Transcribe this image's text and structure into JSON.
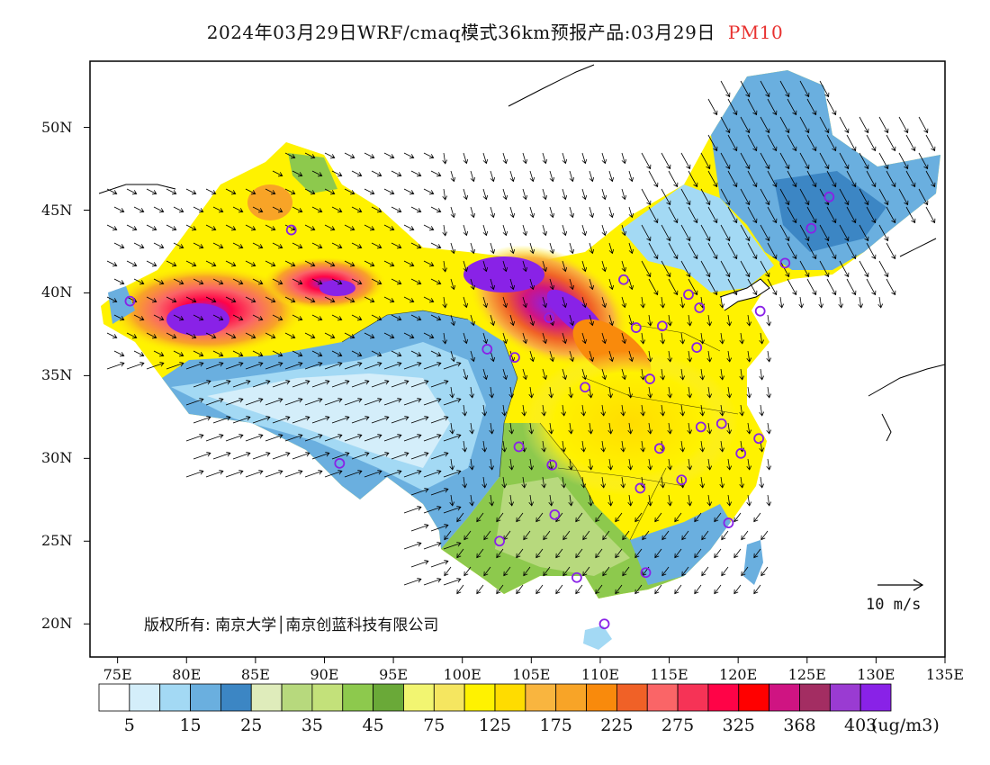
{
  "title": {
    "main": "2024年03月29日WRF/cmaq模式36km预报产品:03月29日",
    "pollutant": "PM10"
  },
  "map": {
    "lon_ticks": [
      "75E",
      "80E",
      "85E",
      "90E",
      "95E",
      "100E",
      "105E",
      "110E",
      "115E",
      "120E",
      "125E",
      "130E",
      "135E"
    ],
    "lat_ticks": [
      "50N",
      "45N",
      "40N",
      "35N",
      "30N",
      "25N",
      "20N"
    ],
    "lon_range": [
      73,
      135
    ],
    "lat_range": [
      18,
      54
    ]
  },
  "copyright": "版权所有: 南京大学│南京创蓝科技有限公司",
  "wind_scale": {
    "label": "10  m/s"
  },
  "colorbar": {
    "units": "(ug/m3)",
    "labels": [
      "5",
      "15",
      "25",
      "35",
      "45",
      "75",
      "125",
      "175",
      "225",
      "275",
      "325",
      "368",
      "403"
    ],
    "colors": [
      "#ffffff",
      "#d4eefa",
      "#a3d9f4",
      "#6aafdf",
      "#3c86c4",
      "#dfecbb",
      "#b7d97d",
      "#c3e17a",
      "#8dc94d",
      "#6aa938",
      "#f2f571",
      "#f5e660",
      "#fff200",
      "#ffdc00",
      "#f9b53f",
      "#f8a427",
      "#f98a0c",
      "#f06127",
      "#fa6567",
      "#f63356",
      "#ff0347",
      "#ff0000",
      "#cf1482",
      "#a32d62",
      "#9a3bd2",
      "#8922e7"
    ]
  },
  "cities": [
    {
      "lon": 87.6,
      "lat": 43.8
    },
    {
      "lon": 91.1,
      "lat": 29.7
    },
    {
      "lon": 101.8,
      "lat": 36.6
    },
    {
      "lon": 103.8,
      "lat": 36.1
    },
    {
      "lon": 106.3,
      "lat": 38.5
    },
    {
      "lon": 111.7,
      "lat": 40.8
    },
    {
      "lon": 112.6,
      "lat": 37.9
    },
    {
      "lon": 114.5,
      "lat": 38.0
    },
    {
      "lon": 116.4,
      "lat": 39.9
    },
    {
      "lon": 117.2,
      "lat": 39.1
    },
    {
      "lon": 117.0,
      "lat": 36.7
    },
    {
      "lon": 113.6,
      "lat": 34.8
    },
    {
      "lon": 108.9,
      "lat": 34.3
    },
    {
      "lon": 104.1,
      "lat": 30.7
    },
    {
      "lon": 106.5,
      "lat": 29.6
    },
    {
      "lon": 106.7,
      "lat": 26.6
    },
    {
      "lon": 102.7,
      "lat": 25.0
    },
    {
      "lon": 108.3,
      "lat": 22.8
    },
    {
      "lon": 113.3,
      "lat": 23.1
    },
    {
      "lon": 110.3,
      "lat": 20.0
    },
    {
      "lon": 112.9,
      "lat": 28.2
    },
    {
      "lon": 114.3,
      "lat": 30.6
    },
    {
      "lon": 115.9,
      "lat": 28.7
    },
    {
      "lon": 117.3,
      "lat": 31.9
    },
    {
      "lon": 118.8,
      "lat": 32.1
    },
    {
      "lon": 120.2,
      "lat": 30.3
    },
    {
      "lon": 121.5,
      "lat": 31.2
    },
    {
      "lon": 119.3,
      "lat": 26.1
    },
    {
      "lon": 123.4,
      "lat": 41.8
    },
    {
      "lon": 125.3,
      "lat": 43.9
    },
    {
      "lon": 126.6,
      "lat": 45.8
    },
    {
      "lon": 121.6,
      "lat": 38.9
    },
    {
      "lon": 75.9,
      "lat": 39.5
    }
  ]
}
